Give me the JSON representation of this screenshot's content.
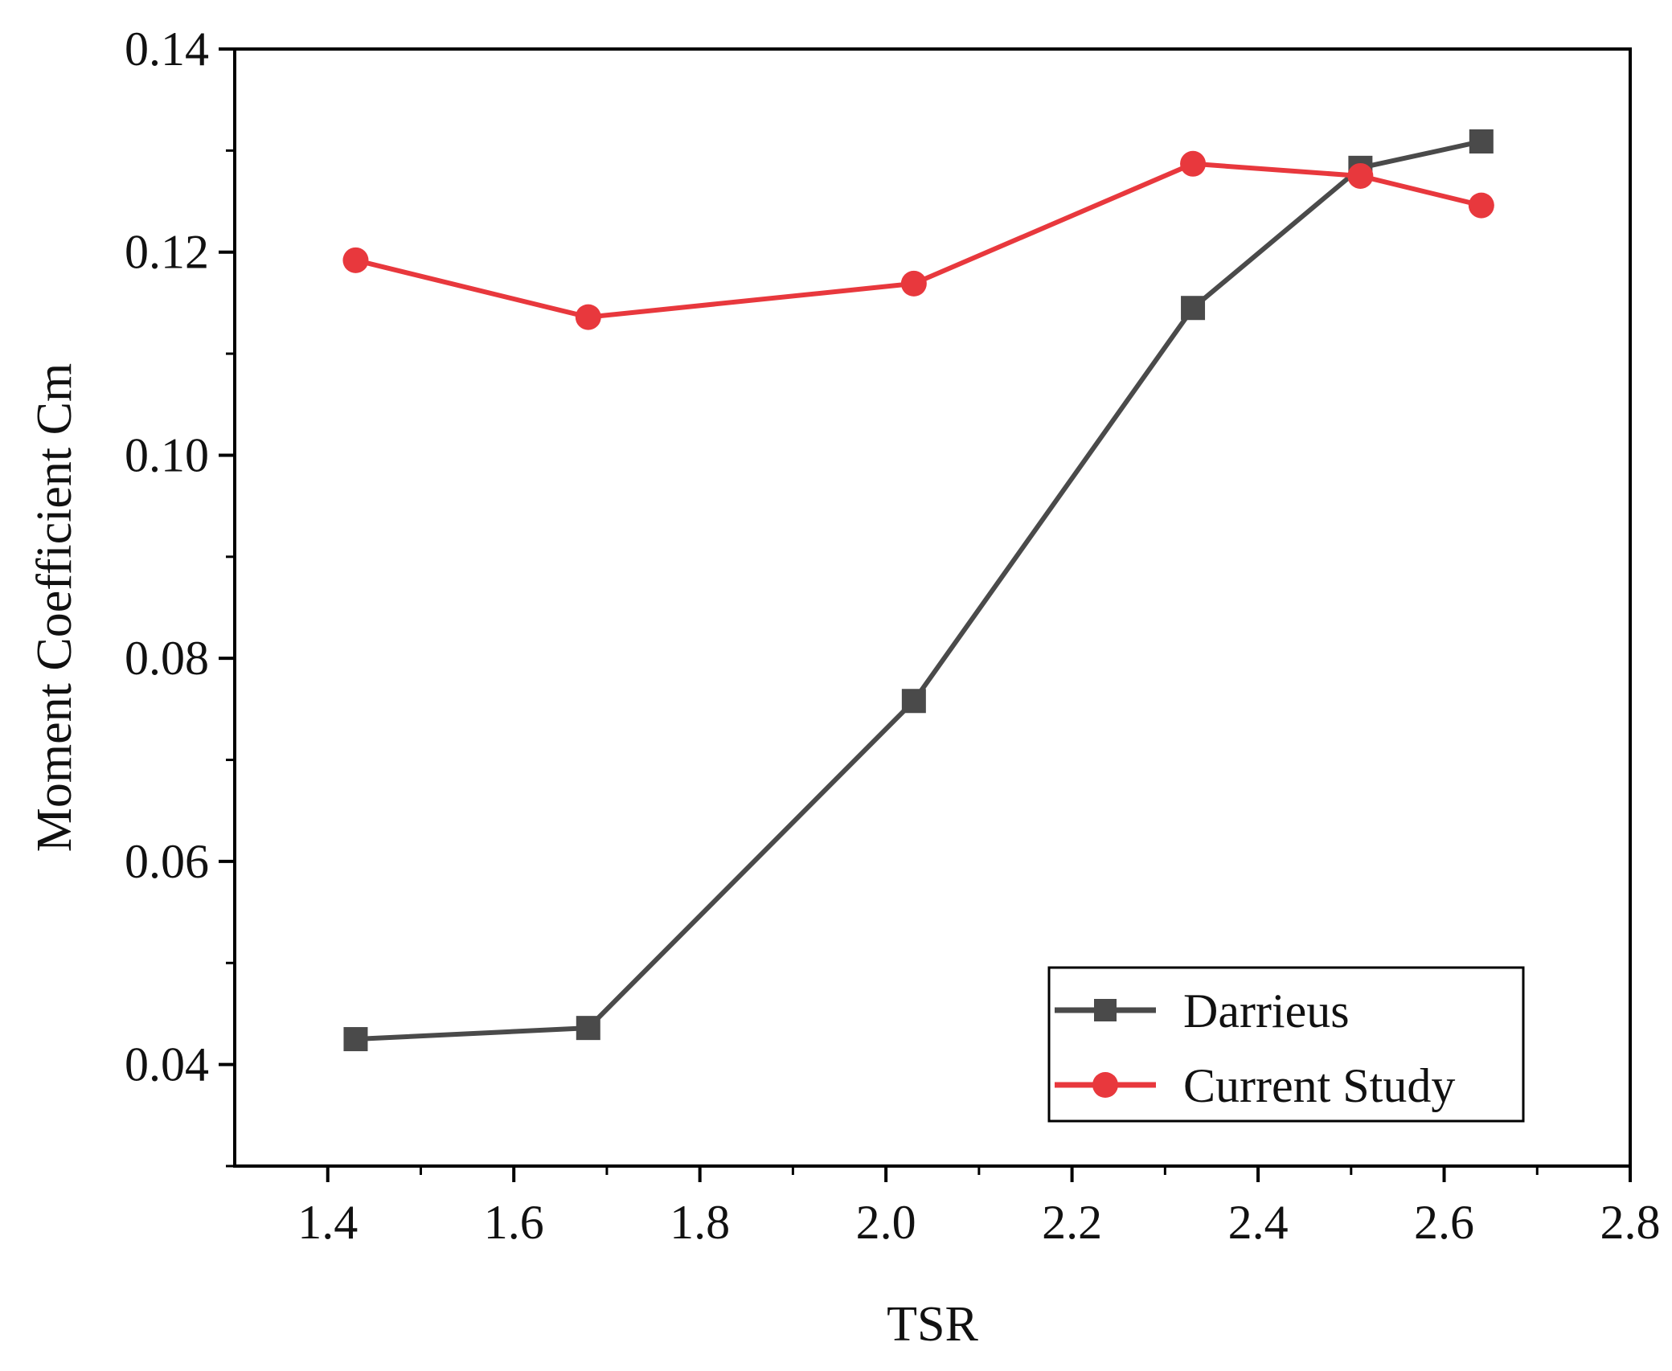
{
  "chart_data": {
    "type": "line",
    "title": "",
    "xlabel": "TSR",
    "ylabel": "Moment Coefficient Cm",
    "xlim": [
      1.3,
      2.8
    ],
    "ylim": [
      0.03,
      0.14
    ],
    "xticks": [
      1.4,
      1.6,
      1.8,
      2.0,
      2.2,
      2.4,
      2.6,
      2.8
    ],
    "xtick_labels": [
      "1.4",
      "1.6",
      "1.8",
      "2.0",
      "2.2",
      "2.4",
      "2.6",
      "2.8"
    ],
    "yticks": [
      0.04,
      0.06,
      0.08,
      0.1,
      0.12,
      0.14
    ],
    "ytick_labels": [
      "0.04",
      "0.06",
      "0.08",
      "0.10",
      "0.12",
      "0.14"
    ],
    "grid": false,
    "legend_position": "bottom-right",
    "series": [
      {
        "name": "Darrieus",
        "color": "#4a4a4a",
        "marker": "square",
        "x": [
          1.43,
          1.68,
          2.03,
          2.33,
          2.51,
          2.64
        ],
        "values": [
          0.0425,
          0.0436,
          0.0758,
          0.1145,
          0.1283,
          0.1309
        ]
      },
      {
        "name": "Current Study",
        "color": "#e8383d",
        "marker": "circle",
        "x": [
          1.43,
          1.68,
          2.03,
          2.33,
          2.51,
          2.64
        ],
        "values": [
          0.1192,
          0.1136,
          0.1169,
          0.1287,
          0.1275,
          0.1246
        ]
      }
    ]
  }
}
